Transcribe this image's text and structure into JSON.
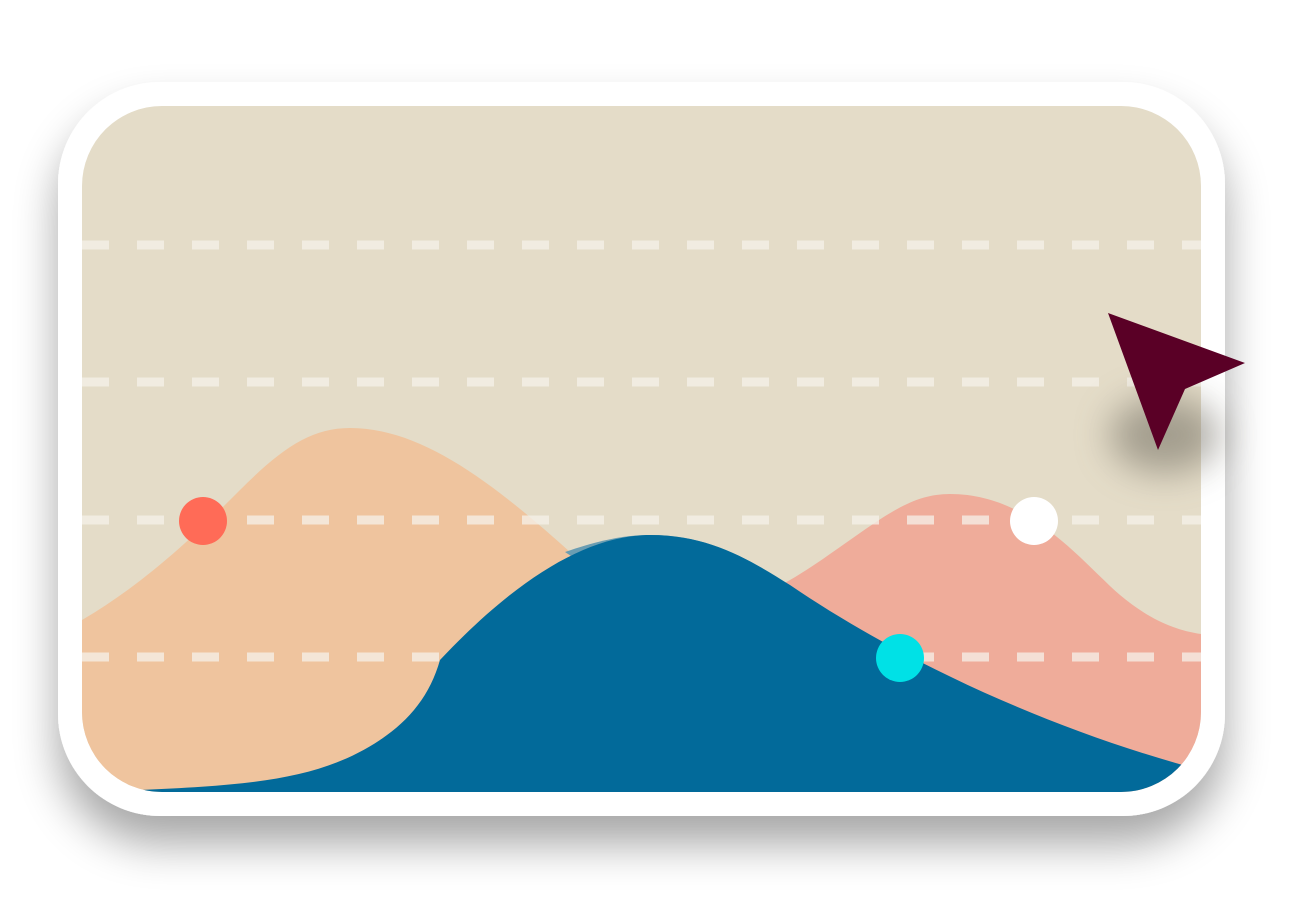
{
  "illustration": {
    "colors": {
      "background": "#ffffff",
      "card_border": "#ffffff",
      "plot_background": "#e4dcc8",
      "gridline": "#f6f2ea",
      "area_peach": "#efc49e",
      "area_salmon": "#efac9a",
      "area_overlap": "#6a9db2",
      "area_blue": "#026a9a",
      "marker_red": "#ff6b57",
      "marker_white": "#ffffff",
      "marker_cyan": "#00e1e6",
      "cursor": "#5a0026"
    },
    "gridline_count": 4,
    "markers": [
      "red-dot",
      "white-dot",
      "cyan-dot"
    ],
    "cursor_icon": "arrow-cursor-icon"
  }
}
